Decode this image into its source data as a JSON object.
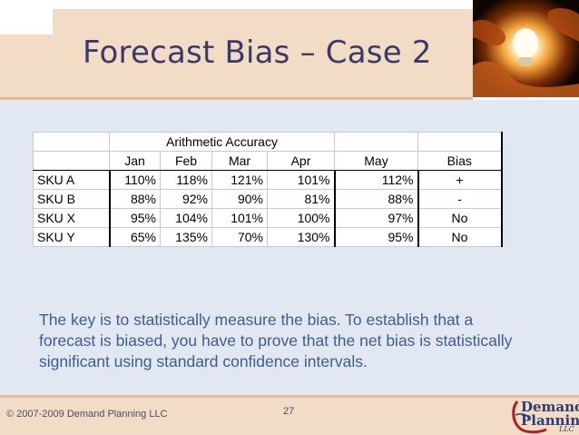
{
  "slide": {
    "title": "Forecast Bias – Case 2",
    "key_text": "The key is to statistically measure the bias.  To establish that a forecast is biased, you have to prove that the net bias is statistically significant using standard confidence intervals.",
    "copyright": "© 2007-2009 Demand Planning LLC",
    "page_number": "27"
  },
  "logo": {
    "line1": "Demand",
    "line2": "Planning",
    "line3": "LLC"
  },
  "table": {
    "group_header": "Arithmetic Accuracy",
    "columns": [
      "Jan",
      "Feb",
      "Mar",
      "Apr",
      "May",
      "Bias"
    ],
    "rows": [
      {
        "label": "SKU A",
        "values": [
          "110%",
          "118%",
          "121%",
          "101%",
          "112%",
          "+"
        ]
      },
      {
        "label": "SKU B",
        "values": [
          "88%",
          "92%",
          "90%",
          "81%",
          "88%",
          "-"
        ]
      },
      {
        "label": "SKU X",
        "values": [
          "95%",
          "104%",
          "101%",
          "100%",
          "97%",
          "No"
        ]
      },
      {
        "label": "SKU Y",
        "values": [
          "65%",
          "135%",
          "70%",
          "130%",
          "95%",
          "No"
        ]
      }
    ]
  },
  "colors": {
    "header_band": "#f2dcc6",
    "content_bg": "#e2e8f1",
    "title": "#3a3a6a",
    "body_text": "#3c5d94"
  }
}
